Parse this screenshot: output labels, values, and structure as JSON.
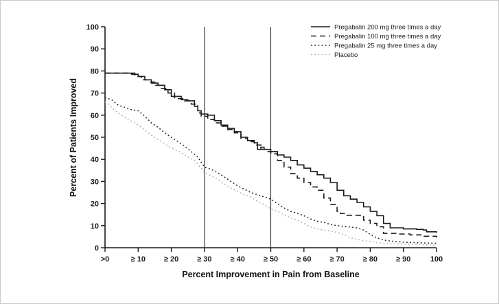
{
  "chart_data": {
    "type": "line",
    "title": "",
    "xlabel": "Percent Improvement in Pain from Baseline",
    "ylabel": "Percent of Patients Improved",
    "xlim": [
      0,
      100
    ],
    "ylim": [
      0,
      100
    ],
    "grid": false,
    "legend_position": "top-right",
    "x_tick_values": [
      0,
      10,
      20,
      30,
      40,
      50,
      60,
      70,
      80,
      90,
      100
    ],
    "x_tick_labels": [
      ">0",
      "≥ 10",
      "≥ 20",
      "≥ 30",
      "≥ 40",
      "≥ 50",
      "≥ 60",
      "≥ 70",
      "≥ 80",
      "≥ 90",
      "100"
    ],
    "y_tick_values": [
      0,
      10,
      20,
      30,
      40,
      50,
      60,
      70,
      80,
      90,
      100
    ],
    "reference_lines_x": [
      30,
      50
    ],
    "colors": {
      "ink": "#1a1a1a",
      "placebo": "#b3b3b3"
    },
    "series": [
      {
        "id": "pregabalin-200mg",
        "name": "Pregabalin 200 mg three times a day",
        "style": "solid",
        "color": "#1a1a1a",
        "step": true,
        "points": [
          [
            0,
            79
          ],
          [
            6,
            79
          ],
          [
            8,
            78.5
          ],
          [
            10,
            77.5
          ],
          [
            12,
            76
          ],
          [
            14,
            74.5
          ],
          [
            16,
            73.5
          ],
          [
            18,
            71.5
          ],
          [
            20,
            68.5
          ],
          [
            23,
            67
          ],
          [
            25,
            66.5
          ],
          [
            27,
            64
          ],
          [
            28,
            62
          ],
          [
            29,
            60.5
          ],
          [
            31,
            60
          ],
          [
            33,
            57.5
          ],
          [
            35,
            55.5
          ],
          [
            37,
            54
          ],
          [
            39,
            52.5
          ],
          [
            41,
            50
          ],
          [
            43,
            48.5
          ],
          [
            45,
            47.5
          ],
          [
            46,
            44.5
          ],
          [
            47,
            45.5
          ],
          [
            48,
            44.5
          ],
          [
            50,
            43.5
          ],
          [
            52,
            42
          ],
          [
            54,
            41
          ],
          [
            56,
            39.5
          ],
          [
            58,
            37.5
          ],
          [
            60,
            36
          ],
          [
            62,
            34.5
          ],
          [
            64,
            33
          ],
          [
            66,
            31.5
          ],
          [
            68,
            29.5
          ],
          [
            70,
            26
          ],
          [
            72,
            23.5
          ],
          [
            74,
            22
          ],
          [
            76,
            20.5
          ],
          [
            78,
            18.5
          ],
          [
            80,
            16.5
          ],
          [
            82,
            14.5
          ],
          [
            84,
            11
          ],
          [
            86,
            9
          ],
          [
            90,
            8.5
          ],
          [
            94,
            8.3
          ],
          [
            96,
            8
          ],
          [
            97,
            7.2
          ],
          [
            100,
            6.8
          ]
        ]
      },
      {
        "id": "pregabalin-100mg",
        "name": "Pregabalin 100 mg three times a day",
        "style": "dashed",
        "color": "#1a1a1a",
        "step": true,
        "points": [
          [
            0,
            79
          ],
          [
            6,
            79
          ],
          [
            9,
            77.5
          ],
          [
            11,
            76
          ],
          [
            13,
            75
          ],
          [
            15,
            73.5
          ],
          [
            17,
            72
          ],
          [
            19,
            70
          ],
          [
            21,
            67.5
          ],
          [
            24,
            66.5
          ],
          [
            26,
            65
          ],
          [
            28,
            61
          ],
          [
            29,
            59.5
          ],
          [
            31,
            58
          ],
          [
            33,
            56.5
          ],
          [
            35,
            55
          ],
          [
            37,
            53.5
          ],
          [
            39,
            52
          ],
          [
            41,
            49.5
          ],
          [
            43,
            48
          ],
          [
            45,
            46.5
          ],
          [
            47,
            44.5
          ],
          [
            49,
            43.5
          ],
          [
            50,
            42.5
          ],
          [
            52,
            39.5
          ],
          [
            54,
            36.5
          ],
          [
            56,
            33.5
          ],
          [
            58,
            31.5
          ],
          [
            60,
            29.5
          ],
          [
            62,
            27.5
          ],
          [
            64,
            26
          ],
          [
            66,
            22.5
          ],
          [
            68,
            19.5
          ],
          [
            70,
            16.5
          ],
          [
            71,
            15.5
          ],
          [
            73,
            14.7
          ],
          [
            77,
            14.5
          ],
          [
            78,
            12.5
          ],
          [
            80,
            11
          ],
          [
            82,
            9.5
          ],
          [
            84,
            6.5
          ],
          [
            88,
            6.2
          ],
          [
            92,
            5.8
          ],
          [
            96,
            5.2
          ],
          [
            100,
            4.7
          ]
        ]
      },
      {
        "id": "pregabalin-25mg",
        "name": "Pregabalin 25 mg three times a day",
        "style": "dotted",
        "color": "#222222",
        "step": false,
        "points": [
          [
            0,
            68
          ],
          [
            2,
            67
          ],
          [
            4,
            64.5
          ],
          [
            6,
            63.5
          ],
          [
            8,
            62.5
          ],
          [
            10,
            62
          ],
          [
            12,
            59.5
          ],
          [
            14,
            56.5
          ],
          [
            16,
            54.5
          ],
          [
            18,
            52
          ],
          [
            20,
            50
          ],
          [
            22,
            48
          ],
          [
            24,
            46
          ],
          [
            26,
            43.5
          ],
          [
            28,
            41
          ],
          [
            30,
            36.5
          ],
          [
            32,
            35.5
          ],
          [
            34,
            34
          ],
          [
            36,
            32
          ],
          [
            38,
            30
          ],
          [
            40,
            28
          ],
          [
            42,
            26.5
          ],
          [
            44,
            25
          ],
          [
            46,
            24
          ],
          [
            48,
            23
          ],
          [
            50,
            22
          ],
          [
            52,
            20
          ],
          [
            54,
            18
          ],
          [
            56,
            16.5
          ],
          [
            58,
            15.5
          ],
          [
            60,
            14.5
          ],
          [
            62,
            13
          ],
          [
            64,
            12
          ],
          [
            66,
            11.5
          ],
          [
            68,
            10.5
          ],
          [
            70,
            10
          ],
          [
            73,
            9.5
          ],
          [
            76,
            9
          ],
          [
            78,
            8
          ],
          [
            80,
            6
          ],
          [
            82,
            4.5
          ],
          [
            84,
            3.5
          ],
          [
            86,
            3
          ],
          [
            90,
            2.5
          ],
          [
            95,
            2.2
          ],
          [
            100,
            2
          ]
        ]
      },
      {
        "id": "placebo",
        "name": "Placebo",
        "style": "dotted",
        "color": "#b3b3b3",
        "step": false,
        "points": [
          [
            0,
            66
          ],
          [
            1,
            65
          ],
          [
            3,
            62
          ],
          [
            5,
            60
          ],
          [
            7,
            58
          ],
          [
            9,
            56.5
          ],
          [
            11,
            54.5
          ],
          [
            13,
            52
          ],
          [
            15,
            50
          ],
          [
            17,
            48
          ],
          [
            19,
            46
          ],
          [
            21,
            44.5
          ],
          [
            23,
            43
          ],
          [
            25,
            41
          ],
          [
            27,
            39.5
          ],
          [
            29,
            36
          ],
          [
            30,
            34
          ],
          [
            32,
            32.5
          ],
          [
            34,
            31
          ],
          [
            36,
            29
          ],
          [
            38,
            27
          ],
          [
            40,
            25.5
          ],
          [
            42,
            24
          ],
          [
            44,
            23
          ],
          [
            46,
            21
          ],
          [
            48,
            19.5
          ],
          [
            50,
            17.5
          ],
          [
            52,
            16.5
          ],
          [
            54,
            15
          ],
          [
            56,
            13.5
          ],
          [
            58,
            12.5
          ],
          [
            60,
            11
          ],
          [
            62,
            9.5
          ],
          [
            64,
            8.5
          ],
          [
            66,
            8
          ],
          [
            68,
            7.5
          ],
          [
            70,
            7
          ],
          [
            72,
            6
          ],
          [
            74,
            4.5
          ],
          [
            76,
            3.8
          ],
          [
            78,
            3.2
          ],
          [
            80,
            2.8
          ],
          [
            82,
            2.3
          ],
          [
            85,
            1.8
          ],
          [
            90,
            1.6
          ],
          [
            95,
            1.5
          ],
          [
            100,
            1
          ]
        ]
      }
    ]
  }
}
